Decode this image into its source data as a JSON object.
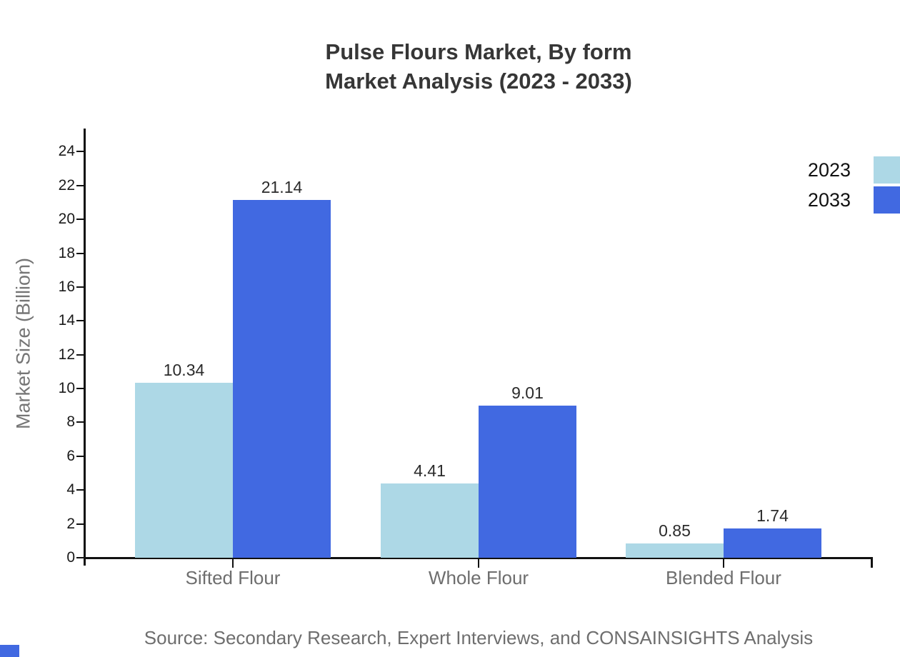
{
  "title": {
    "line1": "Pulse Flours Market, By form",
    "line2": "Market Analysis (2023 - 2033)"
  },
  "source": "Source: Secondary Research, Expert Interviews, and CONSAINSIGHTS Analysis",
  "colors": {
    "series_2023": "#add8e6",
    "series_2033": "#4169e1",
    "axis": "#111111",
    "title_text": "#363636",
    "muted_text": "#6e6e6e"
  },
  "legend": {
    "items": [
      {
        "label": "2023",
        "color": "#add8e6"
      },
      {
        "label": "2033",
        "color": "#4169e1"
      }
    ]
  },
  "chart_data": {
    "type": "bar",
    "categories": [
      "Sifted Flour",
      "Whole Flour",
      "Blended Flour"
    ],
    "series": [
      {
        "name": "2023",
        "color": "#add8e6",
        "values": [
          10.34,
          4.41,
          0.85
        ]
      },
      {
        "name": "2033",
        "color": "#4169e1",
        "values": [
          21.14,
          9.01,
          1.74
        ]
      }
    ],
    "title": "Pulse Flours Market, By form Market Analysis (2023 - 2033)",
    "xlabel": "",
    "ylabel": "Market Size (Billion)",
    "ylim": [
      0,
      25.37
    ],
    "yticks": [
      0,
      2,
      4,
      6,
      8,
      10,
      12,
      14,
      16,
      18,
      20,
      22,
      24
    ],
    "grid": false,
    "legend_position": "top-right",
    "value_labels": true
  }
}
